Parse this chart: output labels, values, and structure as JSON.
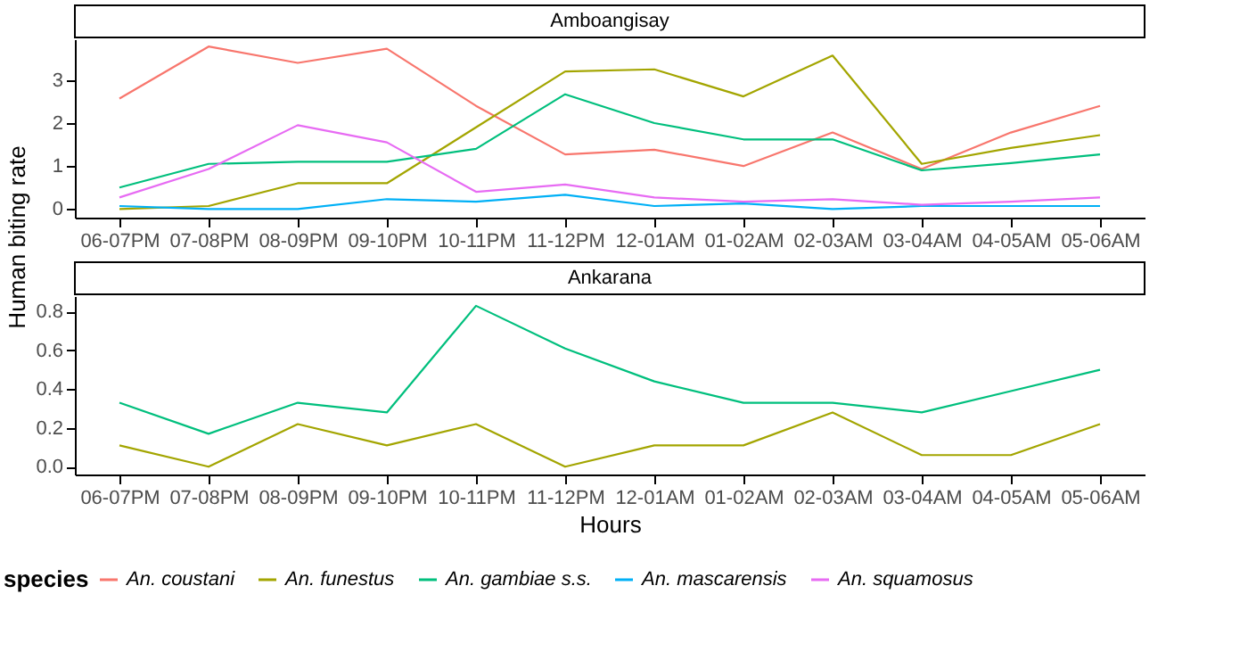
{
  "chart_data": [
    {
      "type": "line",
      "title": "Amboangisay",
      "ylabel": "Human biting rate",
      "legend_title": "species",
      "legend": "bottom",
      "categories": [
        "06-07PM",
        "07-08PM",
        "08-09PM",
        "09-10PM",
        "10-11PM",
        "11-12PM",
        "12-01AM",
        "01-02AM",
        "02-03AM",
        "03-04AM",
        "04-05AM",
        "05-06AM"
      ],
      "ylim": [
        -0.2,
        3.95
      ],
      "yticks": [
        0,
        1,
        2,
        3
      ],
      "series": [
        {
          "name": "An. coustani",
          "color": "#f8766d",
          "values": [
            2.57,
            3.78,
            3.4,
            3.73,
            2.4,
            1.27,
            1.38,
            1.0,
            1.78,
            0.93,
            1.78,
            2.4
          ]
        },
        {
          "name": "An. funestus",
          "color": "#a3a500",
          "values": [
            0,
            0.07,
            0.6,
            0.6,
            1.9,
            3.2,
            3.25,
            2.62,
            3.57,
            1.05,
            1.42,
            1.72
          ]
        },
        {
          "name": "An. gambiae s.s.",
          "color": "#00bf7d",
          "values": [
            0.5,
            1.05,
            1.1,
            1.1,
            1.4,
            2.67,
            2.0,
            1.62,
            1.62,
            0.9,
            1.07,
            1.27
          ]
        },
        {
          "name": "An. mascarensis",
          "color": "#00b0f6",
          "values": [
            0.07,
            0,
            0,
            0.23,
            0.17,
            0.33,
            0.07,
            0.13,
            0,
            0.07,
            0.07,
            0.07
          ]
        },
        {
          "name": "An. squamosus",
          "color": "#e76bf3",
          "values": [
            0.27,
            0.93,
            1.95,
            1.55,
            0.4,
            0.57,
            0.27,
            0.17,
            0.23,
            0.1,
            0.17,
            0.27
          ]
        }
      ]
    },
    {
      "type": "line",
      "title": "Ankarana",
      "xlabel": "Hours",
      "categories": [
        "06-07PM",
        "07-08PM",
        "08-09PM",
        "09-10PM",
        "10-11PM",
        "11-12PM",
        "12-01AM",
        "01-02AM",
        "02-03AM",
        "03-04AM",
        "04-05AM",
        "05-06AM"
      ],
      "ylim": [
        -0.04,
        0.88
      ],
      "yticks": [
        {
          "value": 0,
          "label": "0.0"
        },
        {
          "value": 0.2,
          "label": "0.2"
        },
        {
          "value": 0.4,
          "label": "0.4"
        },
        {
          "value": 0.6,
          "label": "0.6"
        },
        {
          "value": 0.8,
          "label": "0.8"
        }
      ],
      "series": [
        {
          "color": "#a3a500",
          "values": [
            0.11,
            0,
            0.22,
            0.11,
            0.22,
            0,
            0.11,
            0.11,
            0.28,
            0.06,
            0.06,
            0.22
          ]
        },
        {
          "color": "#00bf7d",
          "values": [
            0.33,
            0.17,
            0.33,
            0.28,
            0.83,
            0.61,
            0.44,
            0.33,
            0.33,
            0.28,
            0.39,
            0.5
          ]
        }
      ]
    }
  ]
}
